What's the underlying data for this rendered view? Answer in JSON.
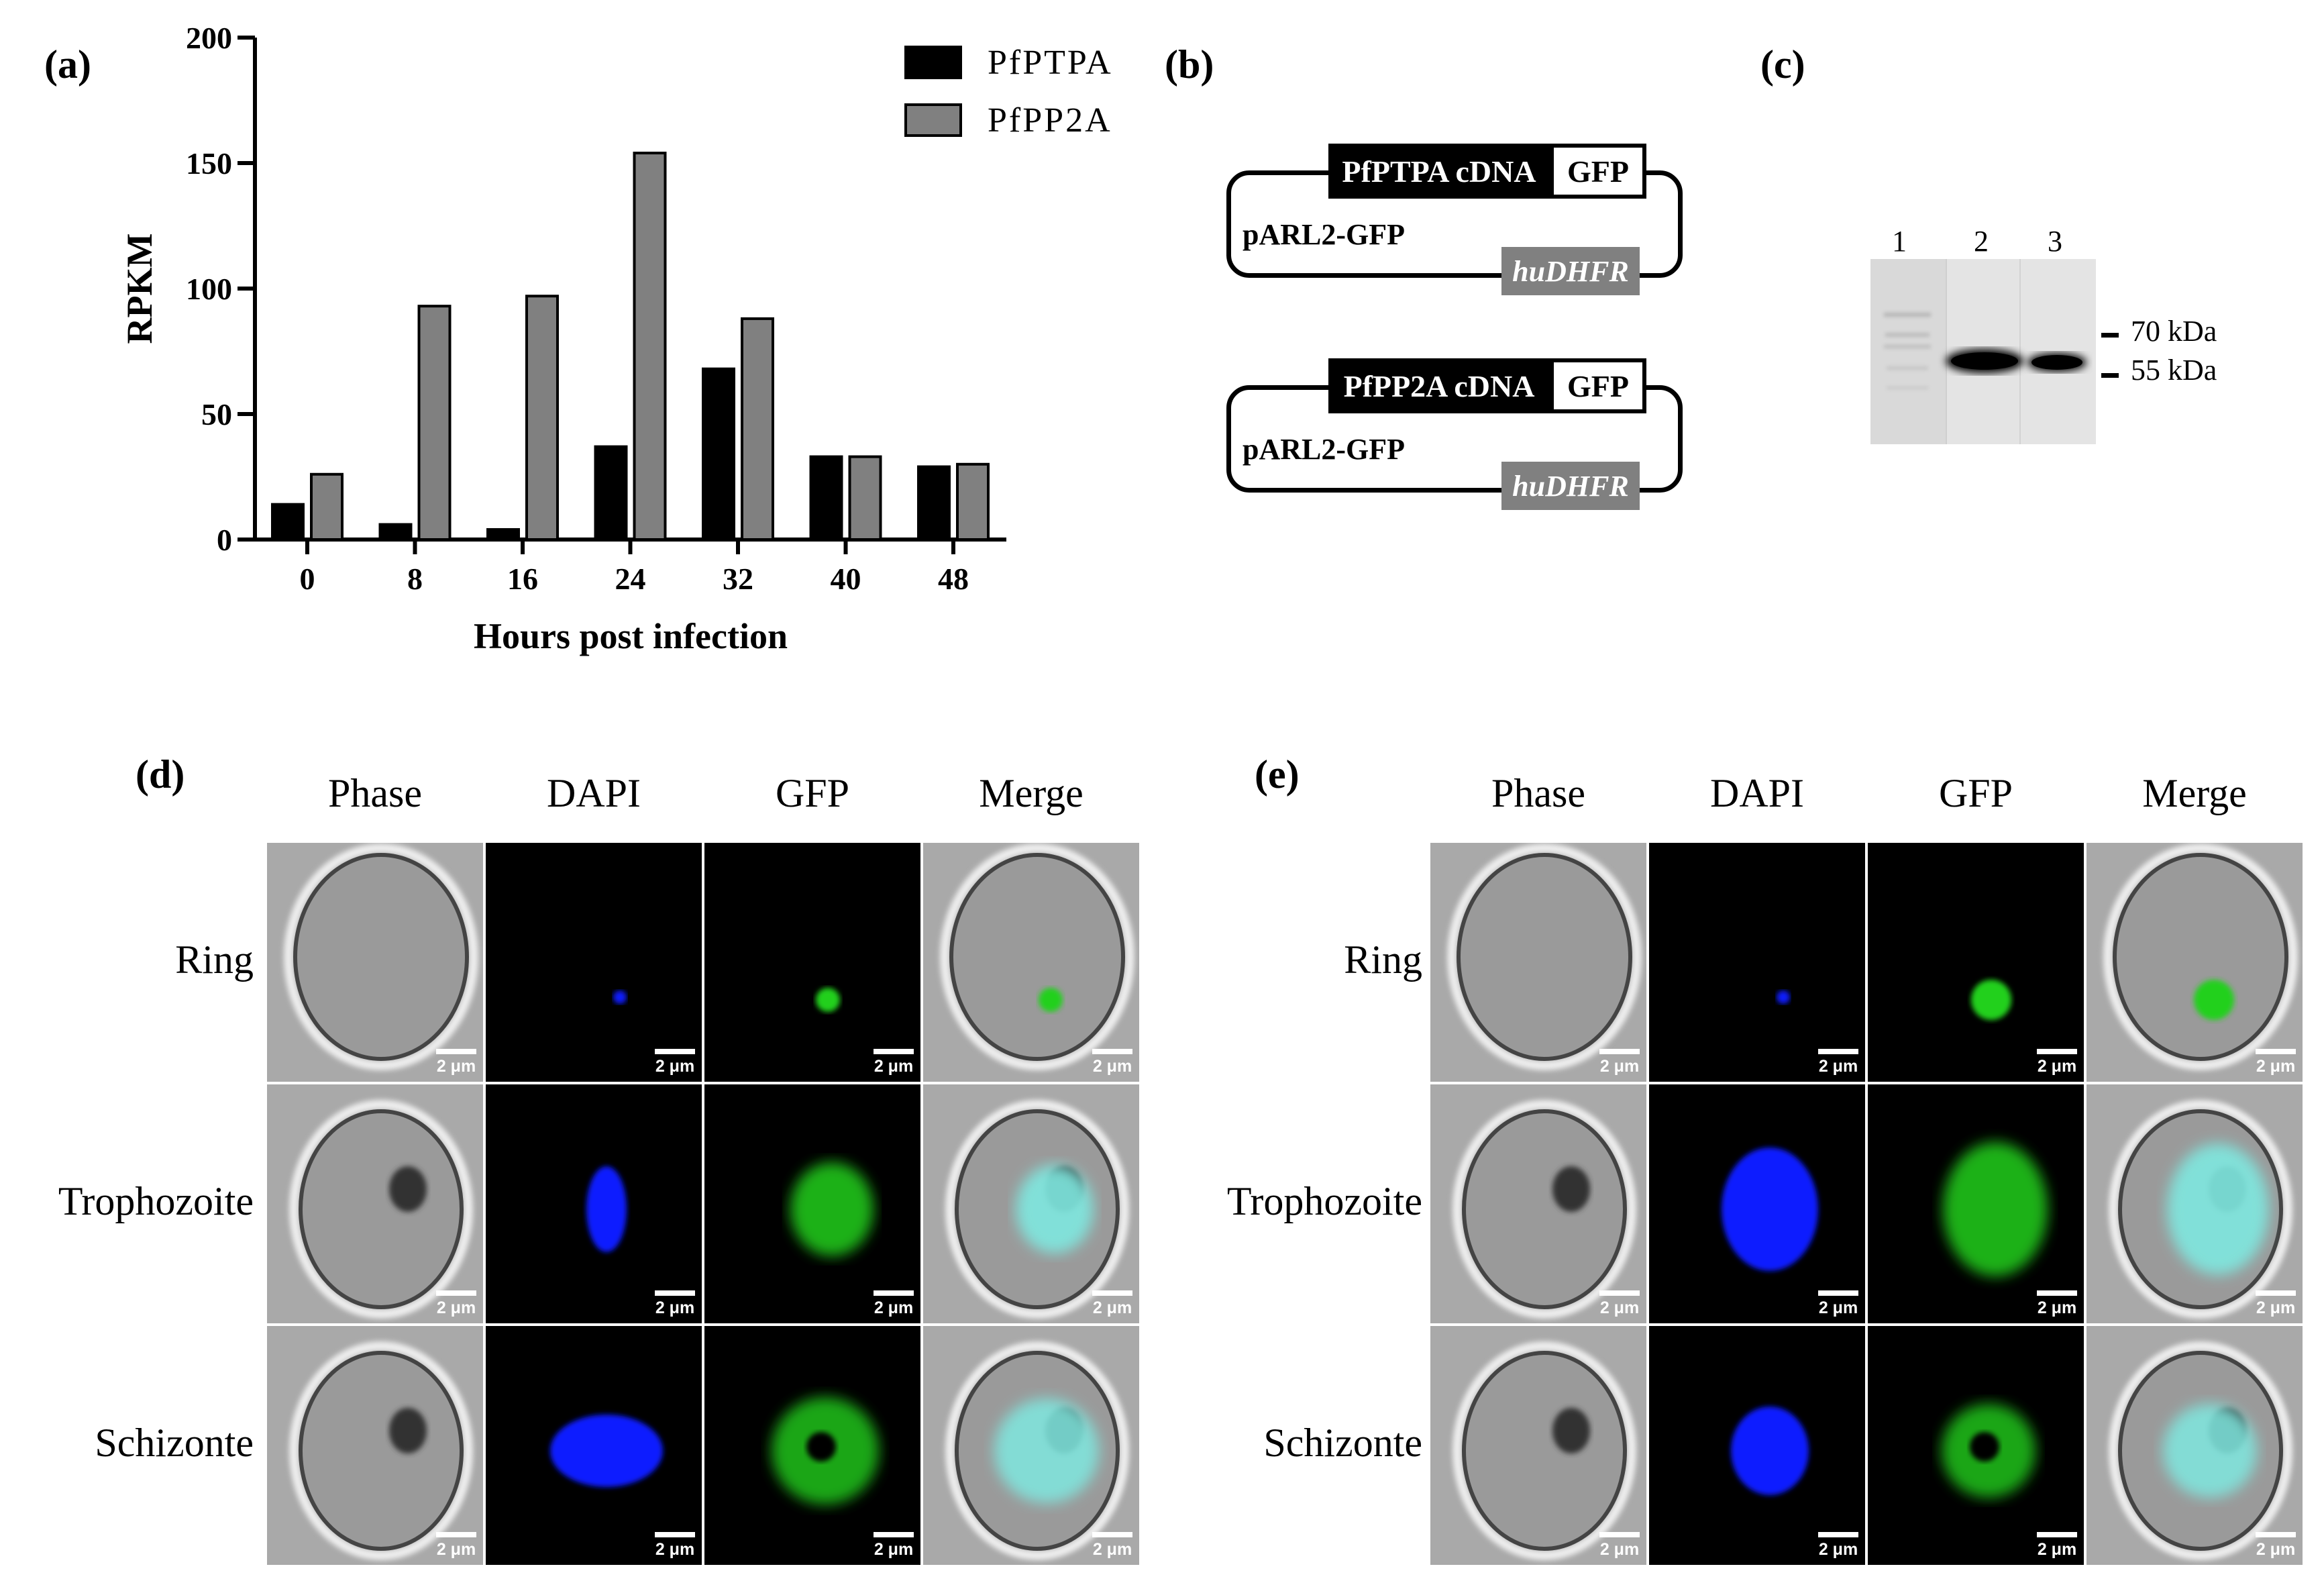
{
  "panel_labels": {
    "a": "(a)",
    "b": "(b)",
    "c": "(c)",
    "d": "(d)",
    "e": "(e)"
  },
  "chart_data": {
    "type": "bar",
    "categories": [
      "0",
      "8",
      "16",
      "24",
      "32",
      "40",
      "48"
    ],
    "series": [
      {
        "name": "PfPTPA",
        "color": "#000000",
        "values": [
          14,
          6,
          4,
          37,
          68,
          33,
          29
        ]
      },
      {
        "name": "PfPP2A",
        "color": "#808080",
        "values": [
          26,
          93,
          97,
          154,
          88,
          33,
          30
        ]
      }
    ],
    "xlabel": "Hours post infection",
    "ylabel": "RPKM",
    "ylim": [
      0,
      200
    ],
    "yticks": [
      "0",
      "50",
      "100",
      "150",
      "200"
    ],
    "legend": "top-right"
  },
  "constructs": [
    {
      "cdna": "PfPTPA cDNA",
      "gfp": "GFP",
      "plasmid": "pARL2-GFP",
      "marker": "huDHFR"
    },
    {
      "cdna": "PfPP2A cDNA",
      "gfp": "GFP",
      "plasmid": "pARL2-GFP",
      "marker": "huDHFR"
    }
  ],
  "western_blot": {
    "lanes": [
      "1",
      "2",
      "3"
    ],
    "markers": [
      "70 kDa",
      "55 kDa"
    ]
  },
  "microscopy": {
    "columns": [
      "Phase",
      "DAPI",
      "GFP",
      "Merge"
    ],
    "rows": [
      "Ring",
      "Trophozoite",
      "Schizonte"
    ],
    "scale_bar": "2 μm",
    "colors": {
      "dapi": "#0a1aff",
      "gfp": "#22d01e",
      "merge": "#7fe8e0"
    }
  }
}
